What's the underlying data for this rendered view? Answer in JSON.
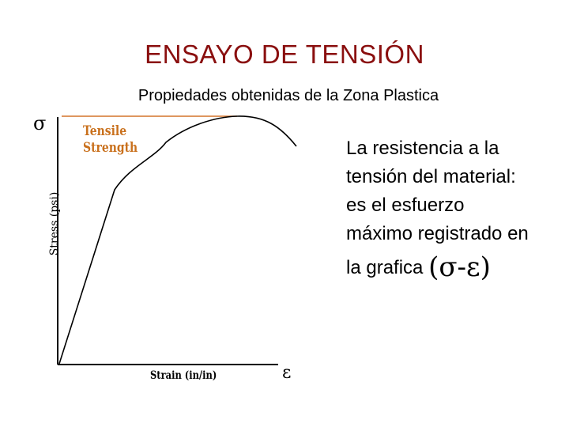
{
  "title": "ENSAYO DE TENSIÓN",
  "subtitle": "Propiedades obtenidas de la Zona Plastica",
  "diagram": {
    "sigma_label": "σ",
    "epsilon_label": "ε",
    "tensile_label_line1": "Tensile",
    "tensile_label_line2": "Strength",
    "y_axis_label": "Stress (psi)",
    "x_axis_label": "Strain (in/in)",
    "colors": {
      "curve": "#000000",
      "tensile_line": "#d4742a",
      "tensile_text": "#c9701c",
      "title": "#8a0f0f"
    }
  },
  "description": {
    "line1": "La resistencia a la",
    "line2": "tensión del material:",
    "line3": "es el esfuerzo",
    "line4": "máximo registrado en",
    "line5": "la grafica",
    "symbol": "(σ-ε)"
  }
}
